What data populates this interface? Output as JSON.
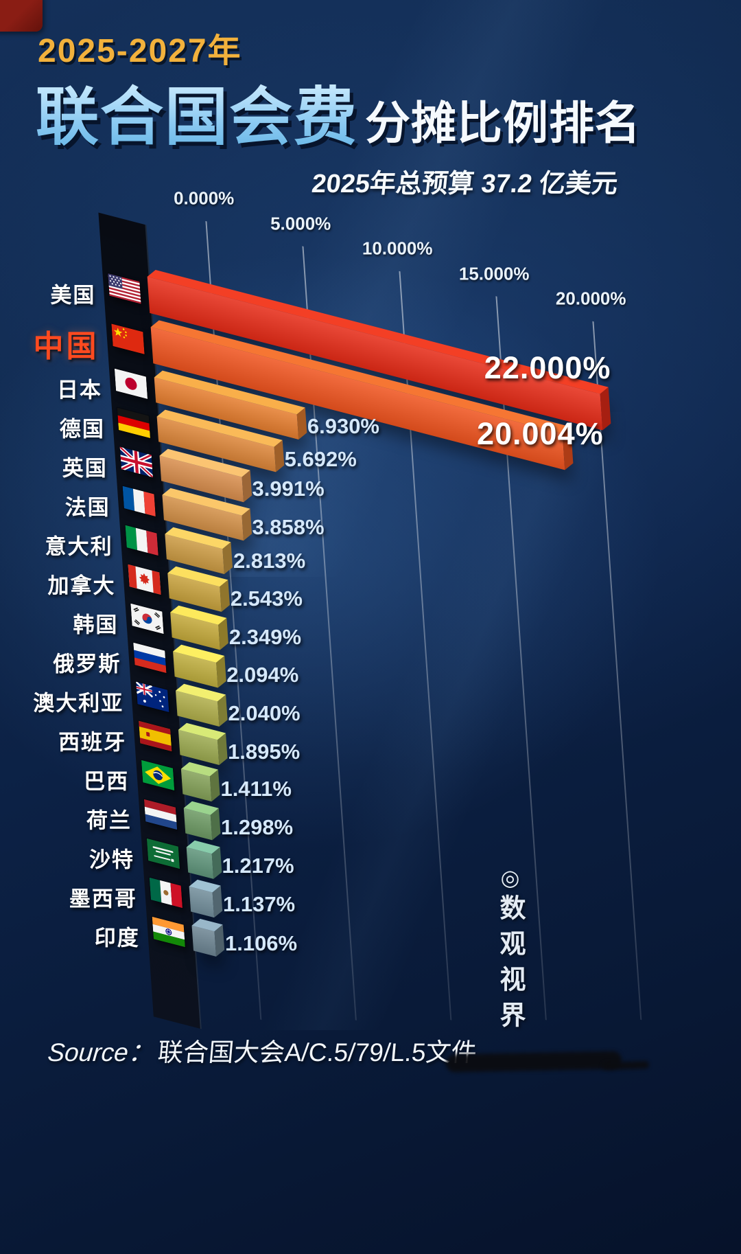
{
  "header": {
    "period": "2025-2027年",
    "title_highlight": "联合国会费",
    "title_rest": "分摊比例排名",
    "subtitle": "2025年总预算 37.2 亿美元"
  },
  "chart_data": {
    "type": "bar",
    "orientation": "horizontal",
    "title": "2025-2027年联合国会费分摊比例排名",
    "subtitle": "2025年总预算 37.2 亿美元",
    "unit": "%",
    "axis_range": [
      0,
      20
    ],
    "axis_ticks": [
      "0.000%",
      "5.000%",
      "10.000%",
      "15.000%",
      "20.000%"
    ],
    "grid": true,
    "categories": [
      "美国",
      "中国",
      "日本",
      "德国",
      "英国",
      "法国",
      "意大利",
      "加拿大",
      "韩国",
      "俄罗斯",
      "澳大利亚",
      "西班牙",
      "巴西",
      "荷兰",
      "沙特",
      "墨西哥",
      "印度"
    ],
    "values": [
      22.0,
      20.004,
      6.93,
      5.692,
      3.991,
      3.858,
      2.813,
      2.543,
      2.349,
      2.094,
      2.04,
      1.895,
      1.411,
      1.298,
      1.217,
      1.137,
      1.106
    ],
    "value_labels": [
      "22.000%",
      "20.004%",
      "6.930%",
      "5.692%",
      "3.991%",
      "3.858%",
      "2.813%",
      "2.543%",
      "2.349%",
      "2.094%",
      "2.040%",
      "1.895%",
      "1.411%",
      "1.298%",
      "1.217%",
      "1.137%",
      "1.106%"
    ],
    "flags": [
      "us",
      "cn",
      "jp",
      "de",
      "gb",
      "fr",
      "it",
      "ca",
      "kr",
      "ru",
      "au",
      "es",
      "br",
      "nl",
      "sa",
      "mx",
      "in"
    ],
    "bar_colors": [
      "#e62b17",
      "#f0541f",
      "#e67e2f",
      "#dd8639",
      "#d98e4d",
      "#d39047",
      "#cc9b43",
      "#c8a23d",
      "#c4a93a",
      "#bfae3e",
      "#b0ae4a",
      "#9caa50",
      "#84a158",
      "#6d9a64",
      "#5f957b",
      "#728e9b",
      "#6d8593"
    ],
    "highlight_index": 1,
    "highlight_color": "#ff4a1f"
  },
  "watermark": {
    "logo_glyph": "◎",
    "text": "数观视界"
  },
  "source": {
    "label": "Source：",
    "text": "联合国大会A/C.5/79/L.5文件"
  }
}
